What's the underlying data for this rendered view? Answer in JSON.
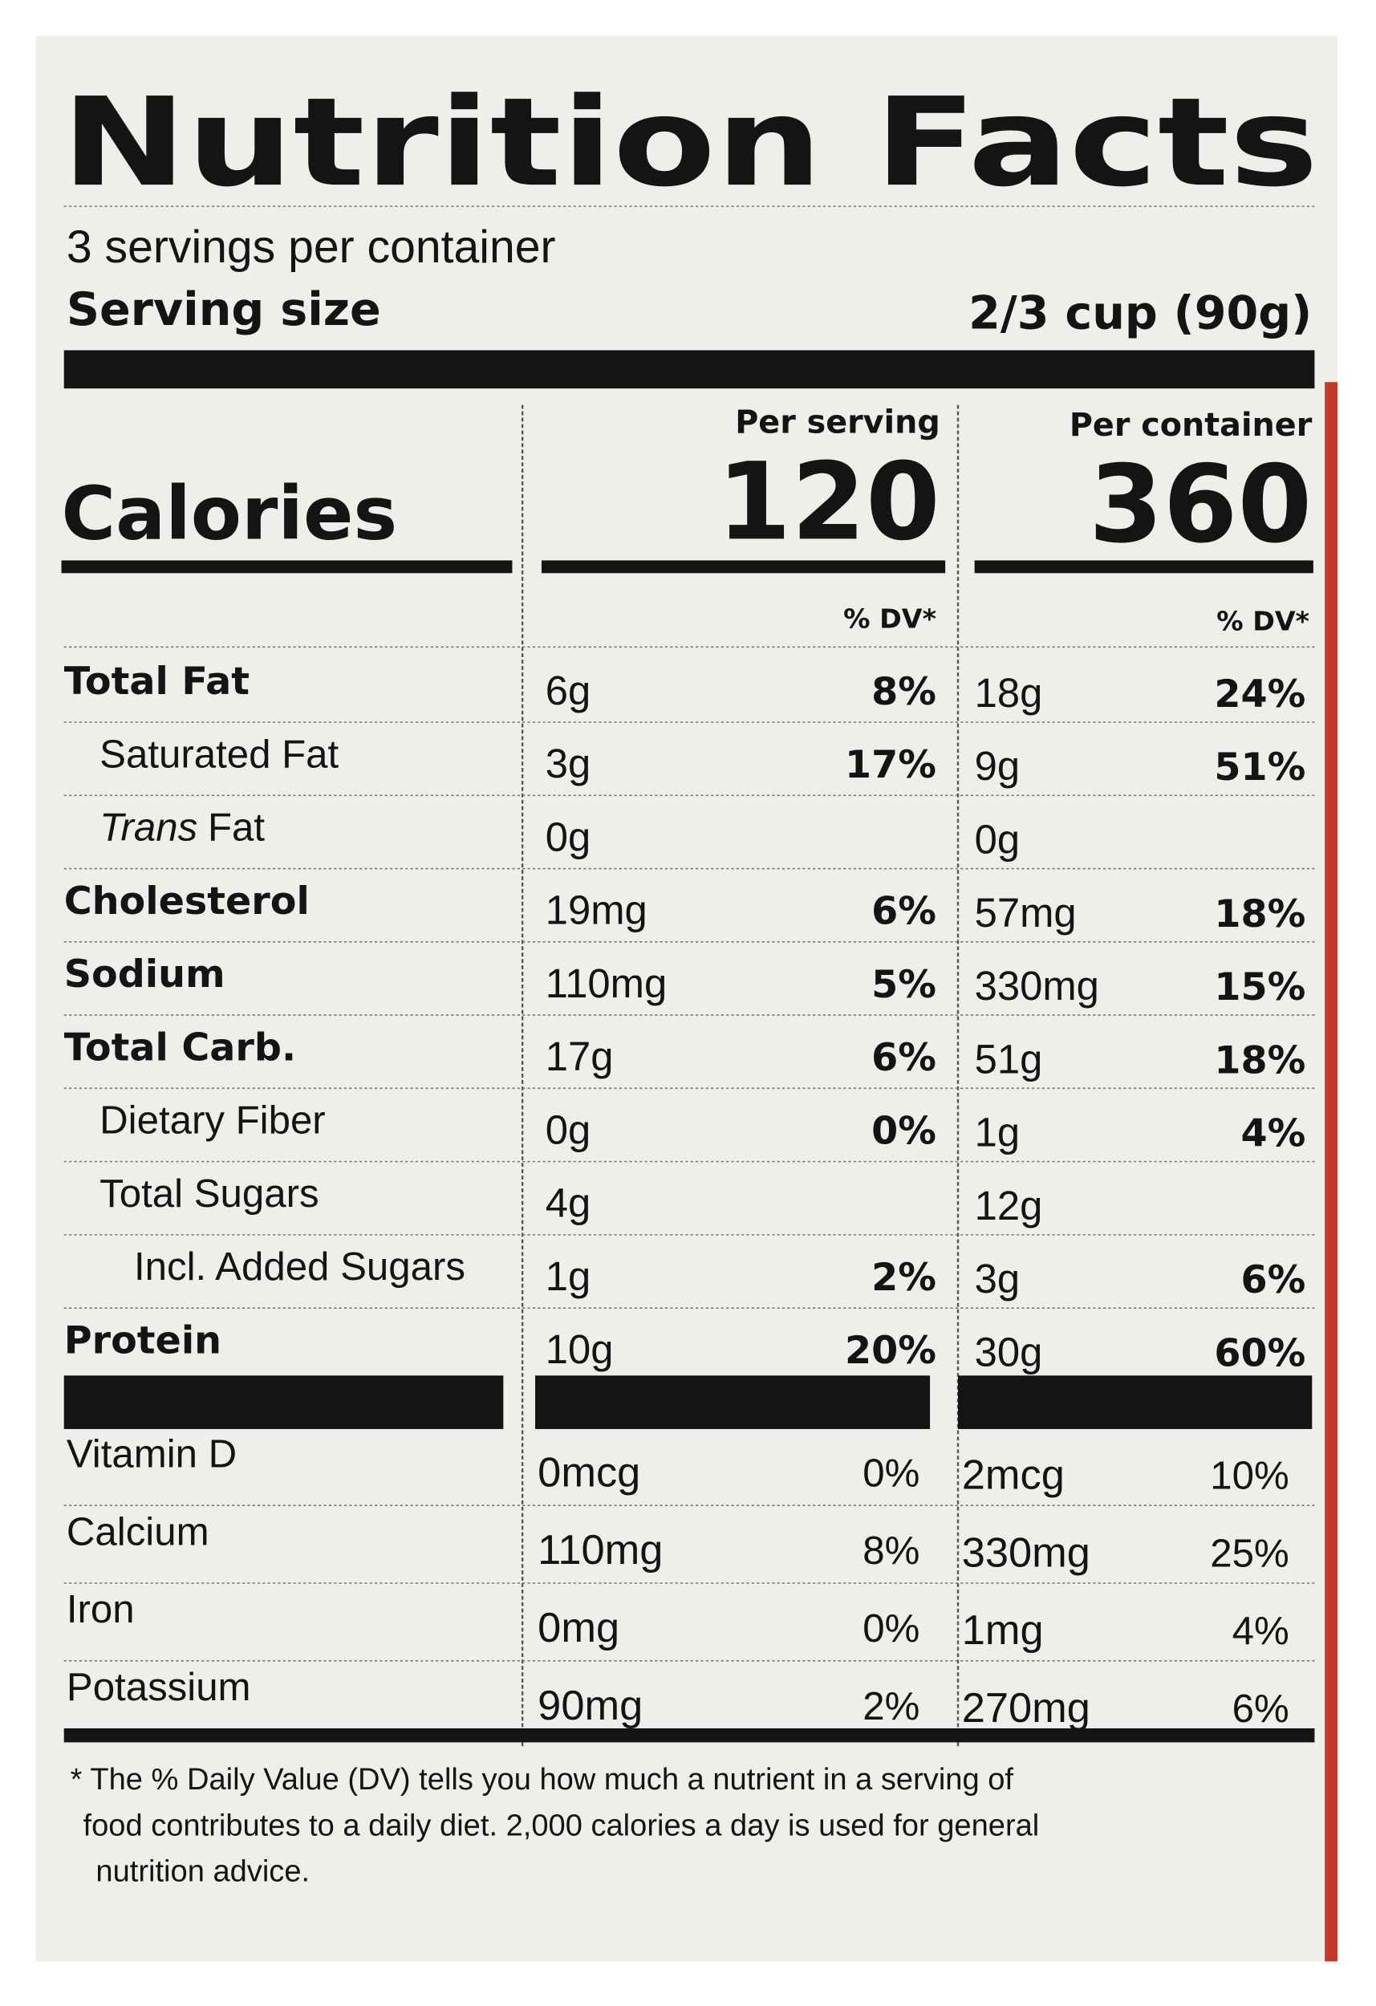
{
  "title": "Nutrition Facts",
  "servings": "3 servings per container",
  "serving_size": {
    "label": "Serving size",
    "value": "2/3 cup (90g)"
  },
  "columns": {
    "per_serving": "Per serving",
    "per_container": "Per container"
  },
  "calories": {
    "label": "Calories",
    "per_serving": "120",
    "per_container": "360"
  },
  "dv_header": {
    "per_serving": "% DV*",
    "per_container": "% DV*"
  },
  "nutrients": [
    {
      "name": "Total Fat",
      "level": 0,
      "serving_amount": "6g",
      "serving_dv": "8%",
      "container_amount": "18g",
      "container_dv": "24%"
    },
    {
      "name": "Saturated Fat",
      "level": 1,
      "serving_amount": "3g",
      "serving_dv": "17%",
      "container_amount": "9g",
      "container_dv": "51%"
    },
    {
      "name_italic": "Trans",
      "name": "Fat",
      "level": 1,
      "serving_amount": "0g",
      "container_amount": "0g"
    },
    {
      "name": "Cholesterol",
      "level": 0,
      "serving_amount": "19mg",
      "serving_dv": "6%",
      "container_amount": "57mg",
      "container_dv": "18%"
    },
    {
      "name": "Sodium",
      "level": 0,
      "serving_amount": "110mg",
      "serving_dv": "5%",
      "container_amount": "330mg",
      "container_dv": "15%"
    },
    {
      "name": "Total Carb.",
      "level": 0,
      "serving_amount": "17g",
      "serving_dv": "6%",
      "container_amount": "51g",
      "container_dv": "18%"
    },
    {
      "name": "Dietary Fiber",
      "level": 1,
      "serving_amount": "0g",
      "serving_dv": "0%",
      "container_amount": "1g",
      "container_dv": "4%"
    },
    {
      "name": "Total Sugars",
      "level": 1,
      "serving_amount": "4g",
      "container_amount": "12g"
    },
    {
      "name": "Incl. Added Sugars",
      "level": 2,
      "serving_amount": "1g",
      "serving_dv": "2%",
      "container_amount": "3g",
      "container_dv": "6%"
    },
    {
      "name": "Protein",
      "level": 0,
      "serving_amount": "10g",
      "serving_dv": "20%",
      "container_amount": "30g",
      "container_dv": "60%"
    }
  ],
  "vitamins": [
    {
      "name": "Vitamin D",
      "serving_amount": "0mcg",
      "serving_dv": "0%",
      "container_amount": "2mcg",
      "container_dv": "10%"
    },
    {
      "name": "Calcium",
      "serving_amount": "110mg",
      "serving_dv": "8%",
      "container_amount": "330mg",
      "container_dv": "25%"
    },
    {
      "name": "Iron",
      "serving_amount": "0mg",
      "serving_dv": "0%",
      "container_amount": "1mg",
      "container_dv": "4%"
    },
    {
      "name": "Potassium",
      "serving_amount": "90mg",
      "serving_dv": "2%",
      "container_amount": "270mg",
      "container_dv": "6%"
    }
  ],
  "footnote": [
    "* The % Daily Value (DV) tells you how much a nutrient in a serving of",
    "food contributes to a daily diet. 2,000 calories a day is used for general",
    "nutrition advice."
  ]
}
